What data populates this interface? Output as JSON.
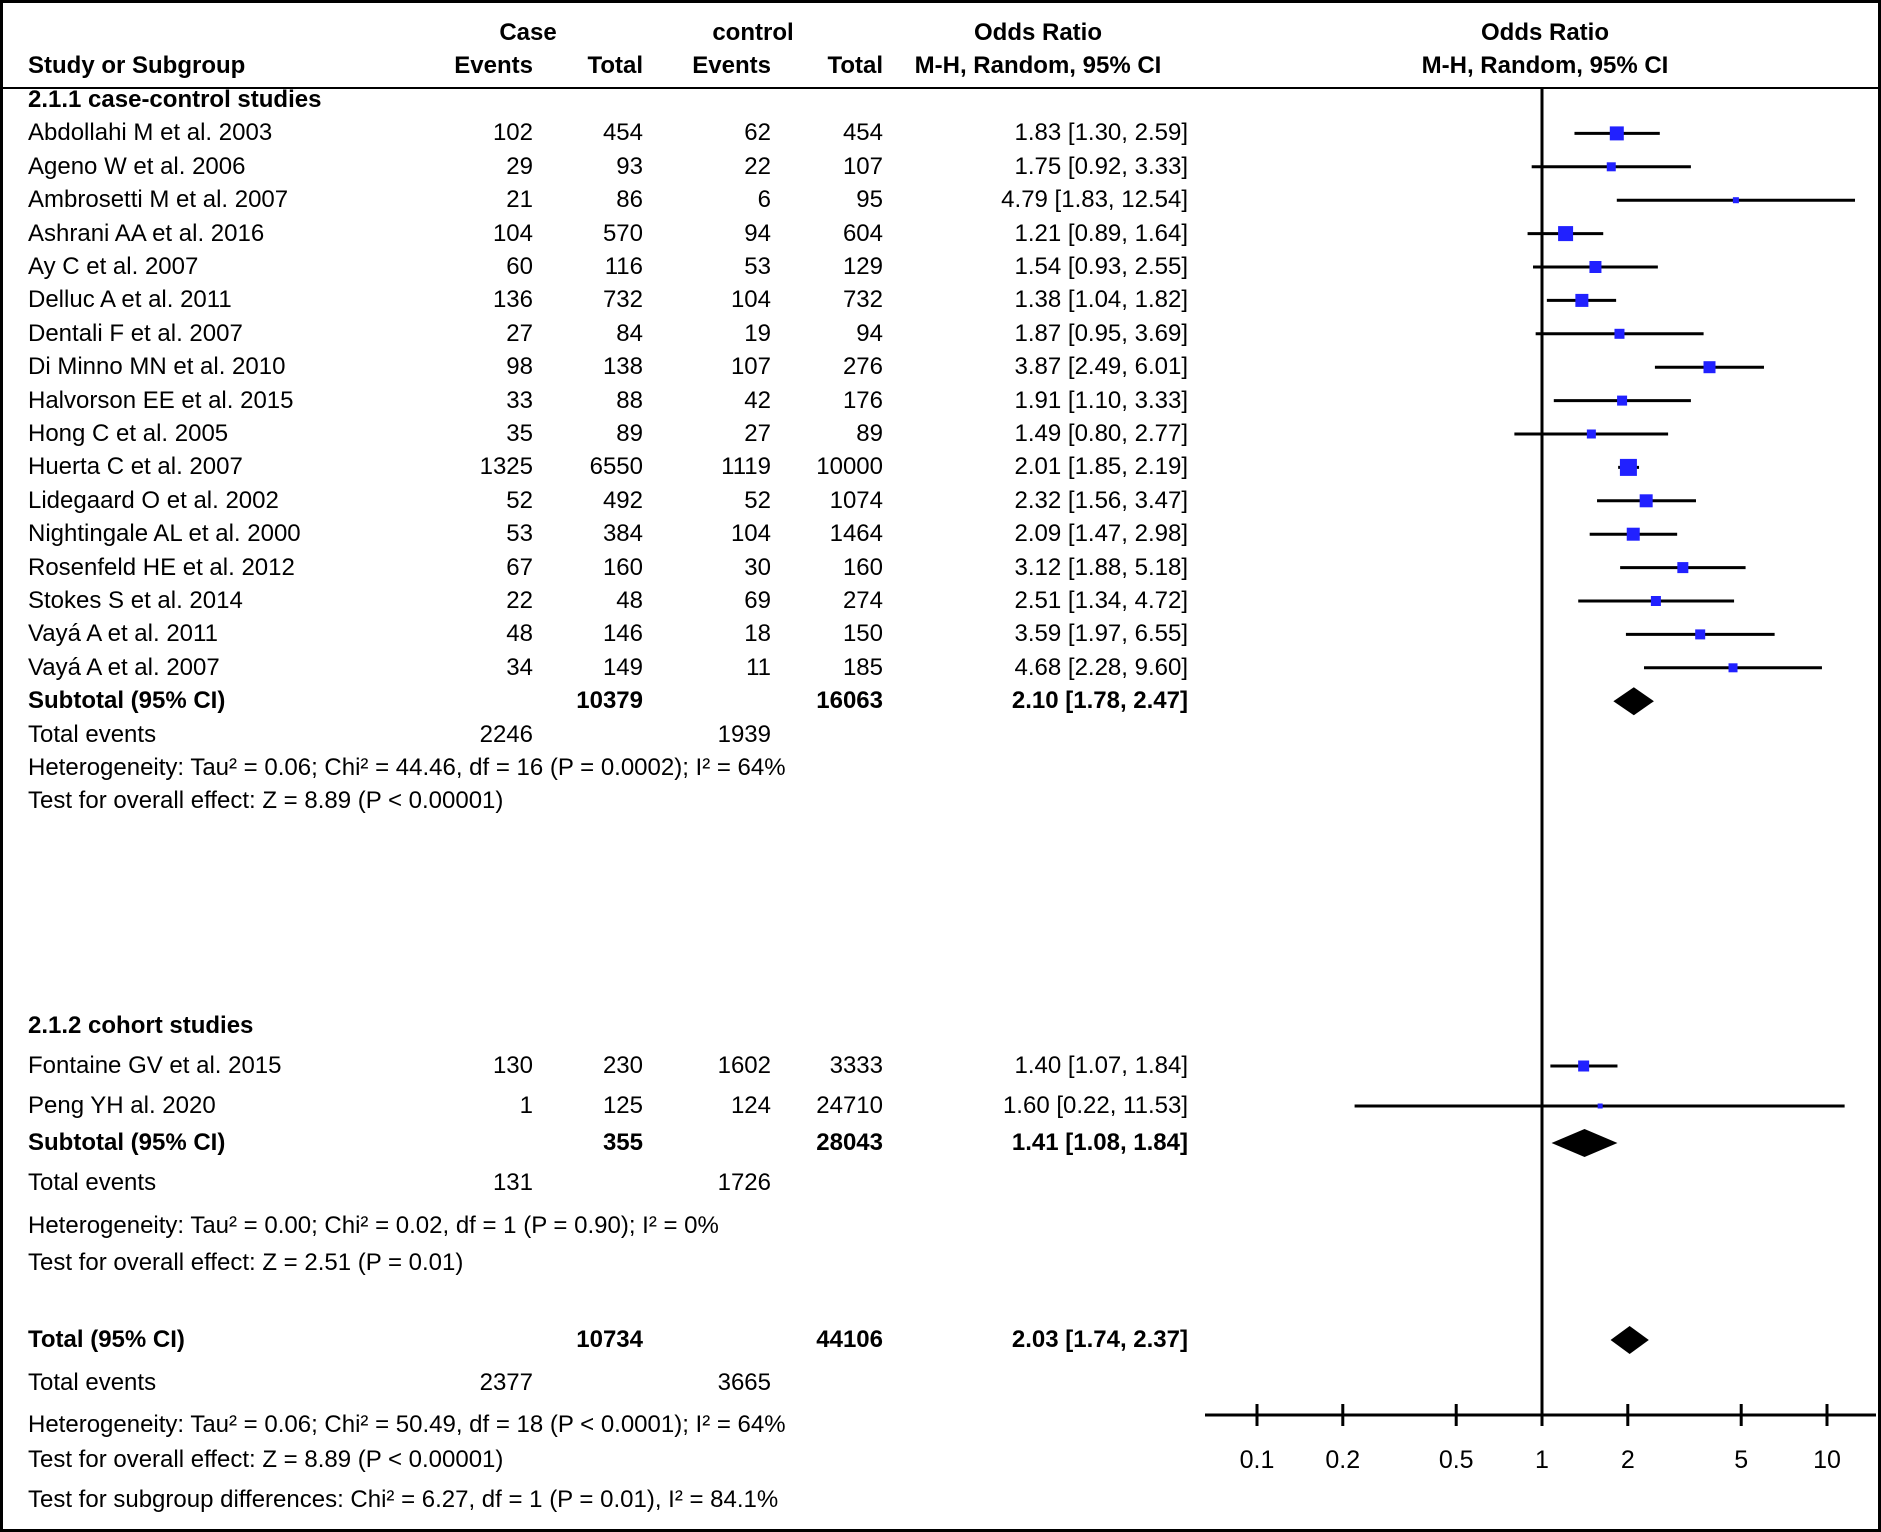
{
  "header": {
    "study_col": "Study or Subgroup",
    "case_group": "Case",
    "control_group": "control",
    "events": "Events",
    "total": "Total",
    "or_stat_title": "Odds Ratio",
    "or_stat_sub": "M-H, Random, 95% CI",
    "or_plot_title": "Odds Ratio",
    "or_plot_sub": "M-H, Random, 95% CI"
  },
  "colors": {
    "marker_blue": "#2121ff",
    "diamond_black": "#000000",
    "line_black": "#000000",
    "text": "#000000",
    "background": "#ffffff"
  },
  "chart_data": {
    "type": "forest",
    "x_scale": "log10",
    "axis_ticks": [
      "0.1",
      "0.2",
      "0.5",
      "1",
      "2",
      "5",
      "10"
    ],
    "axis_tick_values": [
      0.1,
      0.2,
      0.5,
      1,
      2,
      5,
      10
    ],
    "groups": [
      {
        "label": "2.1.1 case-control studies",
        "studies": [
          {
            "name": "Abdollahi M et al. 2003",
            "case_events": "102",
            "case_total": "454",
            "ctrl_events": "62",
            "ctrl_total": "454",
            "or": 1.83,
            "lo": 1.3,
            "hi": 2.59,
            "or_label": "1.83 [1.30, 2.59]",
            "marker_size": 14
          },
          {
            "name": "Ageno W et al. 2006",
            "case_events": "29",
            "case_total": "93",
            "ctrl_events": "22",
            "ctrl_total": "107",
            "or": 1.75,
            "lo": 0.92,
            "hi": 3.33,
            "or_label": "1.75 [0.92, 3.33]",
            "marker_size": 9
          },
          {
            "name": "Ambrosetti M et al. 2007",
            "case_events": "21",
            "case_total": "86",
            "ctrl_events": "6",
            "ctrl_total": "95",
            "or": 4.79,
            "lo": 1.83,
            "hi": 12.54,
            "or_label": "4.79 [1.83, 12.54]",
            "marker_size": 6
          },
          {
            "name": "Ashrani AA et al. 2016",
            "case_events": "104",
            "case_total": "570",
            "ctrl_events": "94",
            "ctrl_total": "604",
            "or": 1.21,
            "lo": 0.89,
            "hi": 1.64,
            "or_label": "1.21 [0.89, 1.64]",
            "marker_size": 15
          },
          {
            "name": "Ay C et al. 2007",
            "case_events": "60",
            "case_total": "116",
            "ctrl_events": "53",
            "ctrl_total": "129",
            "or": 1.54,
            "lo": 0.93,
            "hi": 2.55,
            "or_label": "1.54 [0.93, 2.55]",
            "marker_size": 12
          },
          {
            "name": "Delluc A et al. 2011",
            "case_events": "136",
            "case_total": "732",
            "ctrl_events": "104",
            "ctrl_total": "732",
            "or": 1.38,
            "lo": 1.04,
            "hi": 1.82,
            "or_label": "1.38 [1.04, 1.82]",
            "marker_size": 13
          },
          {
            "name": "Dentali F et al. 2007",
            "case_events": "27",
            "case_total": "84",
            "ctrl_events": "19",
            "ctrl_total": "94",
            "or": 1.87,
            "lo": 0.95,
            "hi": 3.69,
            "or_label": "1.87 [0.95, 3.69]",
            "marker_size": 10
          },
          {
            "name": "Di Minno MN et al. 2010",
            "case_events": "98",
            "case_total": "138",
            "ctrl_events": "107",
            "ctrl_total": "276",
            "or": 3.87,
            "lo": 2.49,
            "hi": 6.01,
            "or_label": "3.87 [2.49, 6.01]",
            "marker_size": 12
          },
          {
            "name": "Halvorson EE et al. 2015",
            "case_events": "33",
            "case_total": "88",
            "ctrl_events": "42",
            "ctrl_total": "176",
            "or": 1.91,
            "lo": 1.1,
            "hi": 3.33,
            "or_label": "1.91 [1.10, 3.33]",
            "marker_size": 10
          },
          {
            "name": "Hong C et al. 2005",
            "case_events": "35",
            "case_total": "89",
            "ctrl_events": "27",
            "ctrl_total": "89",
            "or": 1.49,
            "lo": 0.8,
            "hi": 2.77,
            "or_label": "1.49 [0.80, 2.77]",
            "marker_size": 9
          },
          {
            "name": "Huerta C et al. 2007",
            "case_events": "1325",
            "case_total": "6550",
            "ctrl_events": "1119",
            "ctrl_total": "10000",
            "or": 2.01,
            "lo": 1.85,
            "hi": 2.19,
            "or_label": "2.01 [1.85, 2.19]",
            "marker_size": 17
          },
          {
            "name": "Lidegaard O et al. 2002",
            "case_events": "52",
            "case_total": "492",
            "ctrl_events": "52",
            "ctrl_total": "1074",
            "or": 2.32,
            "lo": 1.56,
            "hi": 3.47,
            "or_label": "2.32 [1.56, 3.47]",
            "marker_size": 13
          },
          {
            "name": "Nightingale AL et al. 2000",
            "case_events": "53",
            "case_total": "384",
            "ctrl_events": "104",
            "ctrl_total": "1464",
            "or": 2.09,
            "lo": 1.47,
            "hi": 2.98,
            "or_label": "2.09 [1.47, 2.98]",
            "marker_size": 13
          },
          {
            "name": "Rosenfeld HE et al. 2012",
            "case_events": "67",
            "case_total": "160",
            "ctrl_events": "30",
            "ctrl_total": "160",
            "or": 3.12,
            "lo": 1.88,
            "hi": 5.18,
            "or_label": "3.12 [1.88, 5.18]",
            "marker_size": 11
          },
          {
            "name": "Stokes S et al. 2014",
            "case_events": "22",
            "case_total": "48",
            "ctrl_events": "69",
            "ctrl_total": "274",
            "or": 2.51,
            "lo": 1.34,
            "hi": 4.72,
            "or_label": "2.51 [1.34, 4.72]",
            "marker_size": 10
          },
          {
            "name": "Vayá A  et al. 2011",
            "case_events": "48",
            "case_total": "146",
            "ctrl_events": "18",
            "ctrl_total": "150",
            "or": 3.59,
            "lo": 1.97,
            "hi": 6.55,
            "or_label": "3.59 [1.97, 6.55]",
            "marker_size": 10
          },
          {
            "name": "Vayá A et al. 2007",
            "case_events": "34",
            "case_total": "149",
            "ctrl_events": "11",
            "ctrl_total": "185",
            "or": 4.68,
            "lo": 2.28,
            "hi": 9.6,
            "or_label": "4.68 [2.28, 9.60]",
            "marker_size": 9
          }
        ],
        "subtotal": {
          "label": "Subtotal (95% CI)",
          "case_total": "10379",
          "ctrl_total": "16063",
          "or": 2.1,
          "lo": 1.78,
          "hi": 2.47,
          "or_label": "2.10 [1.78, 2.47]"
        },
        "total_events": {
          "label": "Total events",
          "case": "2246",
          "control": "1939"
        },
        "heterogeneity": "Heterogeneity: Tau² = 0.06; Chi² = 44.46, df = 16 (P = 0.0002); I² = 64%",
        "overall_effect": "Test for overall effect: Z = 8.89 (P < 0.00001)"
      },
      {
        "label": "2.1.2 cohort studies",
        "studies": [
          {
            "name": "Fontaine GV et al. 2015",
            "case_events": "130",
            "case_total": "230",
            "ctrl_events": "1602",
            "ctrl_total": "3333",
            "or": 1.4,
            "lo": 1.07,
            "hi": 1.84,
            "or_label": "1.40 [1.07, 1.84]",
            "marker_size": 11
          },
          {
            "name": "Peng YH al. 2020",
            "case_events": "1",
            "case_total": "125",
            "ctrl_events": "124",
            "ctrl_total": "24710",
            "or": 1.6,
            "lo": 0.22,
            "hi": 11.53,
            "or_label": "1.60 [0.22, 11.53]",
            "marker_size": 5
          }
        ],
        "subtotal": {
          "label": "Subtotal (95% CI)",
          "case_total": "355",
          "ctrl_total": "28043",
          "or": 1.41,
          "lo": 1.08,
          "hi": 1.84,
          "or_label": "1.41 [1.08, 1.84]"
        },
        "total_events": {
          "label": "Total events",
          "case": "131",
          "control": "1726"
        },
        "heterogeneity": "Heterogeneity: Tau² = 0.00; Chi² = 0.02, df = 1 (P = 0.90); I² = 0%",
        "overall_effect": "Test for overall effect: Z = 2.51 (P = 0.01)"
      }
    ],
    "total": {
      "label": "Total (95% CI)",
      "case_total": "10734",
      "ctrl_total": "44106",
      "or": 2.03,
      "lo": 1.74,
      "hi": 2.37,
      "or_label": "2.03 [1.74, 2.37]"
    },
    "total_events_overall": {
      "label": "Total events",
      "case": "2377",
      "control": "3665"
    },
    "heterogeneity_overall": "Heterogeneity: Tau² = 0.06; Chi² = 50.49, df = 18 (P < 0.0001); I² = 64%",
    "overall_effect_overall": "Test for overall effect: Z = 8.89 (P < 0.00001)",
    "subgroup_differences": "Test for subgroup differences: Chi² = 6.27, df = 1 (P = 0.01), I² = 84.1%"
  }
}
